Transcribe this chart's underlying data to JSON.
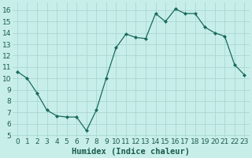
{
  "x": [
    0,
    1,
    2,
    3,
    4,
    5,
    6,
    7,
    8,
    9,
    10,
    11,
    12,
    13,
    14,
    15,
    16,
    17,
    18,
    19,
    20,
    21,
    22,
    23
  ],
  "y": [
    10.6,
    10.0,
    8.7,
    7.2,
    6.7,
    6.6,
    6.6,
    5.4,
    7.2,
    10.0,
    12.7,
    13.9,
    13.6,
    13.5,
    15.7,
    15.0,
    16.1,
    15.7,
    15.7,
    14.5,
    14.0,
    13.7,
    11.2,
    10.3
  ],
  "xlabel": "Humidex (Indice chaleur)",
  "xlim": [
    -0.5,
    23.5
  ],
  "ylim": [
    4.8,
    16.7
  ],
  "yticks": [
    5,
    6,
    7,
    8,
    9,
    10,
    11,
    12,
    13,
    14,
    15,
    16
  ],
  "xticks": [
    0,
    1,
    2,
    3,
    4,
    5,
    6,
    7,
    8,
    9,
    10,
    11,
    12,
    13,
    14,
    15,
    16,
    17,
    18,
    19,
    20,
    21,
    22,
    23
  ],
  "line_color": "#1a6b5a",
  "marker": "D",
  "marker_size": 2.0,
  "bg_color": "#c8eeea",
  "grid_color": "#aad8d0",
  "font_color": "#1a5c4a",
  "xlabel_fontsize": 7.5,
  "tick_fontsize": 6.5
}
